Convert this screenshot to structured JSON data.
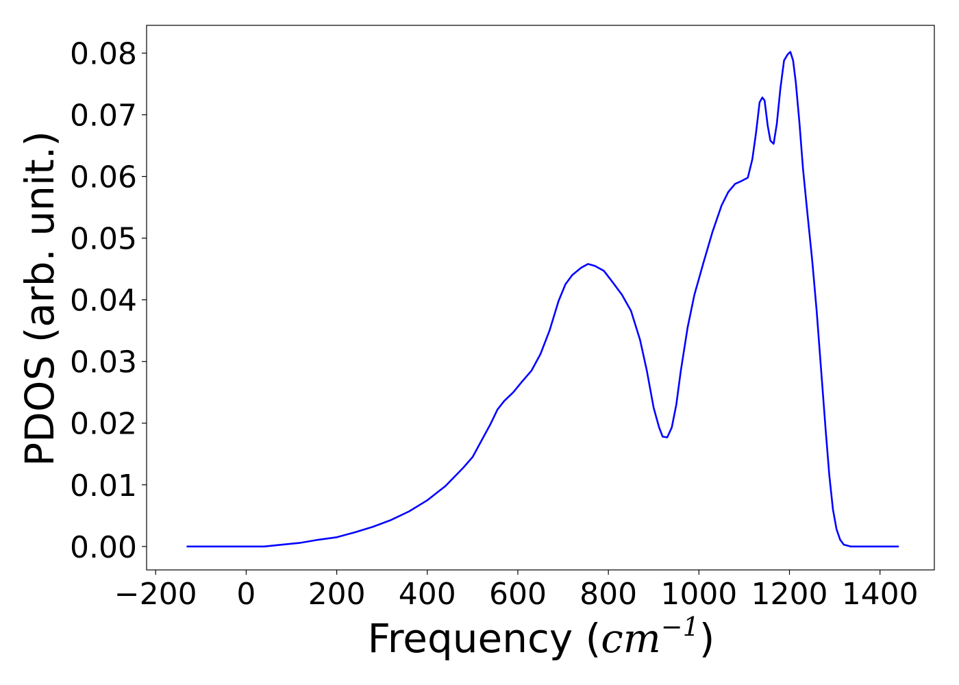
{
  "chart_data": {
    "type": "line",
    "title": "",
    "xlabel": {
      "text": "Frequency (",
      "unit": "cm",
      "exponent": "−1",
      "close": ")"
    },
    "ylabel": "PDOS (arb. unit.)",
    "xlim": [
      -220,
      1520
    ],
    "ylim": [
      -0.0038,
      0.0845
    ],
    "xticks": [
      -200,
      0,
      200,
      400,
      600,
      800,
      1000,
      1200,
      1400
    ],
    "xtick_labels": [
      "−200",
      "0",
      "200",
      "400",
      "600",
      "800",
      "1000",
      "1200",
      "1400"
    ],
    "yticks": [
      0.0,
      0.01,
      0.02,
      0.03,
      0.04,
      0.05,
      0.06,
      0.07,
      0.08
    ],
    "ytick_labels": [
      "0.00",
      "0.01",
      "0.02",
      "0.03",
      "0.04",
      "0.05",
      "0.06",
      "0.07",
      "0.08"
    ],
    "grid": false,
    "series": [
      {
        "color": "#0000ff",
        "points": [
          [
            -130,
            0.0
          ],
          [
            -100,
            0.0
          ],
          [
            -50,
            0.0
          ],
          [
            0,
            0.0
          ],
          [
            40,
            0.0
          ],
          [
            80,
            0.0003
          ],
          [
            120,
            0.0006
          ],
          [
            160,
            0.0011
          ],
          [
            200,
            0.0015
          ],
          [
            240,
            0.0023
          ],
          [
            280,
            0.0032
          ],
          [
            320,
            0.0043
          ],
          [
            360,
            0.0057
          ],
          [
            400,
            0.0075
          ],
          [
            440,
            0.0098
          ],
          [
            480,
            0.0128
          ],
          [
            500,
            0.0145
          ],
          [
            520,
            0.0172
          ],
          [
            540,
            0.0199
          ],
          [
            555,
            0.0222
          ],
          [
            570,
            0.0236
          ],
          [
            590,
            0.025
          ],
          [
            610,
            0.0268
          ],
          [
            630,
            0.0285
          ],
          [
            650,
            0.0312
          ],
          [
            670,
            0.035
          ],
          [
            690,
            0.0398
          ],
          [
            705,
            0.0425
          ],
          [
            720,
            0.044
          ],
          [
            740,
            0.0452
          ],
          [
            755,
            0.0458
          ],
          [
            770,
            0.0455
          ],
          [
            790,
            0.0447
          ],
          [
            810,
            0.0428
          ],
          [
            830,
            0.0408
          ],
          [
            850,
            0.0382
          ],
          [
            870,
            0.0335
          ],
          [
            885,
            0.0285
          ],
          [
            900,
            0.0225
          ],
          [
            912,
            0.0193
          ],
          [
            920,
            0.0178
          ],
          [
            930,
            0.0177
          ],
          [
            940,
            0.0193
          ],
          [
            950,
            0.023
          ],
          [
            960,
            0.0285
          ],
          [
            975,
            0.0355
          ],
          [
            990,
            0.0408
          ],
          [
            1010,
            0.046
          ],
          [
            1030,
            0.051
          ],
          [
            1050,
            0.0553
          ],
          [
            1065,
            0.0575
          ],
          [
            1080,
            0.0588
          ],
          [
            1095,
            0.0593
          ],
          [
            1108,
            0.0598
          ],
          [
            1118,
            0.0628
          ],
          [
            1126,
            0.067
          ],
          [
            1134,
            0.072
          ],
          [
            1140,
            0.0728
          ],
          [
            1145,
            0.0723
          ],
          [
            1152,
            0.0682
          ],
          [
            1158,
            0.0658
          ],
          [
            1165,
            0.0653
          ],
          [
            1172,
            0.0685
          ],
          [
            1180,
            0.0743
          ],
          [
            1188,
            0.0788
          ],
          [
            1196,
            0.0798
          ],
          [
            1202,
            0.0802
          ],
          [
            1208,
            0.0788
          ],
          [
            1214,
            0.0752
          ],
          [
            1222,
            0.0688
          ],
          [
            1230,
            0.0612
          ],
          [
            1240,
            0.0538
          ],
          [
            1250,
            0.0465
          ],
          [
            1260,
            0.0382
          ],
          [
            1270,
            0.0285
          ],
          [
            1280,
            0.0188
          ],
          [
            1288,
            0.0115
          ],
          [
            1296,
            0.006
          ],
          [
            1304,
            0.0028
          ],
          [
            1312,
            0.0011
          ],
          [
            1320,
            0.0003
          ],
          [
            1335,
            0.0
          ],
          [
            1380,
            0.0
          ],
          [
            1440,
            0.0
          ]
        ]
      }
    ]
  }
}
